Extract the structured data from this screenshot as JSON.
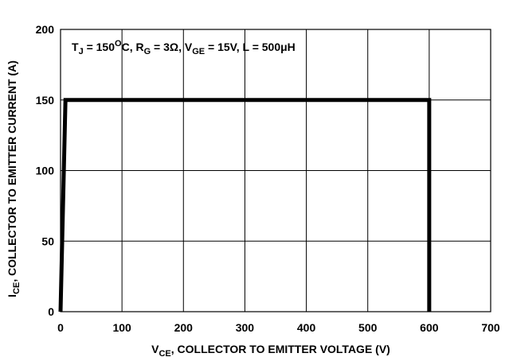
{
  "chart_data": {
    "type": "line",
    "xlabel": {
      "main": "V",
      "sub": "CE",
      "rest": ", COLLECTOR TO EMITTER VOLTAGE (V)"
    },
    "ylabel": {
      "main": "I",
      "sub": "CE",
      "rest": ", COLLECTOR TO EMITTER CURRENT (A)"
    },
    "annotation": {
      "t1": "T",
      "t1_sub": "J",
      "t2": " = 150",
      "t2_sup": "O",
      "t3": "C, R",
      "t3_sub": "G",
      "t4": " = 3Ω, V",
      "t4_sub": "GE",
      "t5": " = 15V, L = 500μH"
    },
    "xlim": [
      0,
      700
    ],
    "ylim": [
      0,
      200
    ],
    "x_ticks": [
      0,
      100,
      200,
      300,
      400,
      500,
      600,
      700
    ],
    "y_ticks": [
      0,
      50,
      100,
      150,
      200
    ],
    "x_tick_labels": [
      "0",
      "100",
      "200",
      "300",
      "400",
      "500",
      "600",
      "700"
    ],
    "y_tick_labels": [
      "0",
      "50",
      "100",
      "150",
      "200"
    ],
    "grid": true,
    "series": [
      {
        "color": "#000000",
        "x": [
          0,
          8,
          600,
          600
        ],
        "y": [
          0,
          150,
          150,
          0
        ]
      }
    ]
  }
}
